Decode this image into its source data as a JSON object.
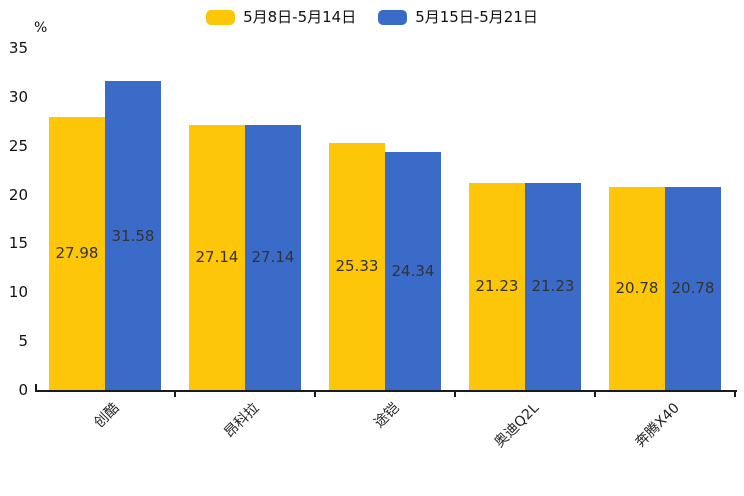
{
  "chart_data": {
    "type": "bar",
    "title": "",
    "xlabel": "",
    "ylabel": "%",
    "categories": [
      "创酷",
      "昂科拉",
      "途铠",
      "奥迪Q2L",
      "奔腾X40"
    ],
    "series": [
      {
        "name": "5月8日-5月14日",
        "color": "#FDC609",
        "values": [
          27.98,
          27.14,
          25.33,
          21.23,
          20.78
        ]
      },
      {
        "name": "5月15日-5月21日",
        "color": "#3A6BC9",
        "values": [
          31.58,
          27.14,
          24.34,
          21.23,
          20.78
        ]
      }
    ],
    "ylim": [
      0,
      35
    ],
    "yticks": [
      0,
      5,
      10,
      15,
      20,
      25,
      30,
      35
    ],
    "grid": false,
    "legend_position": "top",
    "value_labels": "inside-center",
    "value_label_color": "#333333",
    "axis_color": "#1a1a1a"
  }
}
